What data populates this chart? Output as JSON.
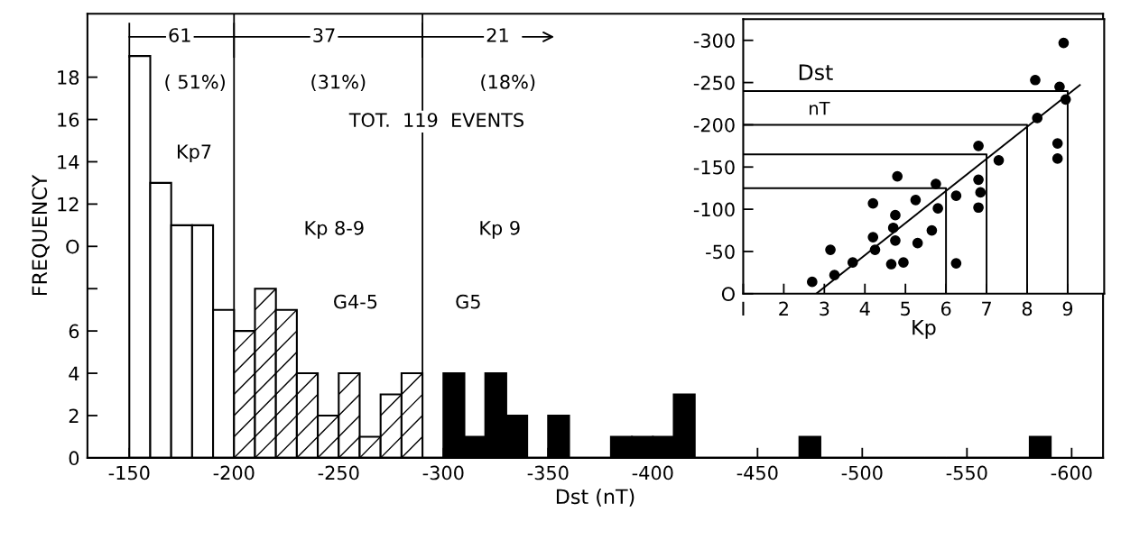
{
  "chart_data": [
    {
      "type": "histogram",
      "xlabel": "Dst (nT)",
      "ylabel": "FREQUENCY",
      "xlim": [
        -130,
        -615
      ],
      "xticks": [
        -150,
        -200,
        -250,
        -300,
        -350,
        -400,
        -450,
        -500,
        -550,
        -600
      ],
      "ylim": [
        0,
        21
      ],
      "yticks": [
        0,
        2,
        4,
        6,
        {
          "value": 8,
          "label": null
        },
        {
          "value": 10,
          "label": "O"
        },
        12,
        14,
        16,
        18
      ],
      "bins": [
        -150,
        -160,
        -170,
        -180,
        -190,
        -200,
        -210,
        -220,
        -230,
        -240,
        -250,
        -260,
        -270,
        -280,
        -290,
        -300,
        -310,
        -320,
        -330,
        -340,
        -350,
        -360,
        -370,
        -380,
        -390,
        -400,
        -410,
        -420,
        -430,
        -440,
        -450,
        -460,
        -470,
        -480,
        -490,
        -500,
        -510,
        -520,
        -530,
        -540,
        -550,
        -560,
        -570,
        -580,
        -590
      ],
      "values": [
        19,
        13,
        11,
        11,
        7,
        6,
        8,
        7,
        4,
        2,
        4,
        1,
        3,
        4,
        0,
        4,
        1,
        4,
        2,
        0,
        2,
        0,
        0,
        1,
        1,
        1,
        3,
        0,
        0,
        0,
        0,
        0,
        1,
        0,
        0,
        0,
        0,
        0,
        0,
        0,
        0,
        0,
        0,
        1
      ],
      "colors": [
        "#ffffff",
        "#ffffff",
        "#ffffff",
        "#ffffff",
        "#ffffff",
        "#ffffff",
        "#ffffff",
        "#ffffff",
        "#ffffff",
        "#ffffff",
        "#ffffff",
        "#ffffff",
        "#ffffff",
        "#ffffff",
        "#ffffff",
        "#000000",
        "#000000",
        "#000000",
        "#000000",
        "#000000",
        "#000000",
        "#000000",
        "#000000",
        "#000000",
        "#000000",
        "#000000",
        "#000000",
        "#000000",
        "#000000",
        "#000000",
        "#000000",
        "#000000",
        "#000000",
        "#000000",
        "#000000",
        "#000000",
        "#000000",
        "#000000",
        "#000000",
        "#000000",
        "#000000",
        "#000000",
        "#000000",
        "#000000"
      ],
      "ref_lines": [
        {
          "axis": "x",
          "value": -200
        },
        {
          "axis": "x",
          "value": -290
        }
      ],
      "annotations": [
        "61",
        "37",
        "21",
        "( 51%)",
        "(31%)",
        "(18%)",
        "TOT.  119  EVENTS",
        "Kp7",
        "Kp 8-9",
        "G4-5",
        "Kp 9",
        "G5"
      ],
      "grid": false
    },
    {
      "type": "scatter",
      "xlabel": "Kp",
      "xlim": [
        1,
        9.9
      ],
      "xticks": [
        {
          "value": 1,
          "label": "I"
        },
        2,
        3,
        4,
        5,
        6,
        7,
        8,
        9
      ],
      "ylim": [
        0,
        -325
      ],
      "yticks": [
        {
          "value": 0,
          "label": "O"
        },
        -50,
        -100,
        -150,
        -200,
        -250,
        -300
      ],
      "grid": false,
      "annotations": [
        "Dst",
        "nT"
      ],
      "series": [
        {
          "color": "#000000",
          "marker": "circle",
          "x": [
            8.9,
            8.2,
            8.8,
            8.95,
            8.25,
            8.75,
            8.75,
            6.8,
            7.3,
            4.8,
            5.75,
            6.8,
            6.25,
            6.85,
            6.8,
            4.2,
            5.25,
            5.8,
            4.75,
            4.7,
            5.65,
            4.2,
            4.75,
            5.3,
            4.25,
            3.15,
            3.7,
            4.65,
            4.95,
            6.25,
            3.25,
            2.7
          ],
          "values": [
            -297,
            -253,
            -245,
            -230,
            -208,
            -178,
            -160,
            -175,
            -158,
            -139,
            -130,
            -135,
            -116,
            -120,
            -102,
            -107,
            -111,
            -101,
            -93,
            -78,
            -75,
            -67,
            -63,
            -60,
            -52,
            -52,
            -37,
            -35,
            -37,
            -36,
            -22,
            -14
          ]
        },
        {
          "type": "line",
          "color": "#000000",
          "x": [
            2.8,
            9.3
          ],
          "values": [
            0,
            -247
          ]
        },
        {
          "type": "line",
          "color": "#000000",
          "x": [
            1,
            6,
            6
          ],
          "values": [
            -125,
            -125,
            0
          ]
        },
        {
          "type": "line",
          "color": "#000000",
          "x": [
            1,
            7,
            7
          ],
          "values": [
            -165,
            -165,
            0
          ]
        },
        {
          "type": "line",
          "color": "#000000",
          "x": [
            1,
            8,
            8
          ],
          "values": [
            -200,
            -200,
            0
          ]
        },
        {
          "type": "line",
          "color": "#000000",
          "x": [
            1,
            9,
            9
          ],
          "values": [
            -240,
            -240,
            0
          ]
        }
      ]
    }
  ]
}
